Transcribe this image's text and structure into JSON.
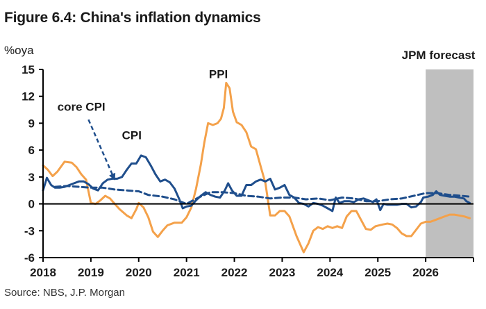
{
  "title": "Figure 6.4: China's inflation dynamics",
  "unit_label": "%oya",
  "source": "Source: NBS, J.P. Morgan",
  "chart_data": {
    "type": "line",
    "title": "Figure 6.4: China's inflation dynamics",
    "xlabel": "",
    "ylabel": "%oya",
    "xlim": [
      2018,
      2027
    ],
    "ylim": [
      -6,
      15
    ],
    "x_ticks": [
      "2018",
      "2019",
      "2020",
      "2021",
      "2022",
      "2023",
      "2024",
      "2025",
      "2026"
    ],
    "y_ticks": [
      "15",
      "12",
      "9",
      "6",
      "3",
      "0",
      "-3",
      "-6"
    ],
    "y_tick_values": [
      15,
      12,
      9,
      6,
      3,
      0,
      -3,
      -6
    ],
    "grid": false,
    "forecast_region": {
      "label": "JPM forecast",
      "start": 2026,
      "end": 2027,
      "color": "#bfbfbf"
    },
    "annotations": [
      {
        "text": "PPI",
        "series": "PPI"
      },
      {
        "text": "CPI",
        "series": "CPI"
      },
      {
        "text": "core CPI",
        "series": "core CPI",
        "arrow": true
      }
    ],
    "series": [
      {
        "name": "PPI",
        "color": "#f4a14a",
        "style": "solid",
        "points": [
          [
            2018.0,
            4.3
          ],
          [
            2018.1,
            3.8
          ],
          [
            2018.2,
            3.1
          ],
          [
            2018.3,
            3.6
          ],
          [
            2018.45,
            4.7
          ],
          [
            2018.6,
            4.6
          ],
          [
            2018.7,
            4.1
          ],
          [
            2018.8,
            3.3
          ],
          [
            2018.9,
            2.7
          ],
          [
            2019.0,
            0.1
          ],
          [
            2019.1,
            0.0
          ],
          [
            2019.2,
            0.4
          ],
          [
            2019.3,
            0.9
          ],
          [
            2019.4,
            0.6
          ],
          [
            2019.5,
            0.0
          ],
          [
            2019.6,
            -0.6
          ],
          [
            2019.75,
            -1.3
          ],
          [
            2019.85,
            -1.6
          ],
          [
            2019.95,
            -0.6
          ],
          [
            2020.0,
            0.1
          ],
          [
            2020.1,
            -0.4
          ],
          [
            2020.2,
            -1.5
          ],
          [
            2020.3,
            -3.1
          ],
          [
            2020.4,
            -3.7
          ],
          [
            2020.5,
            -3.0
          ],
          [
            2020.6,
            -2.4
          ],
          [
            2020.75,
            -2.1
          ],
          [
            2020.9,
            -2.1
          ],
          [
            2021.0,
            -1.5
          ],
          [
            2021.1,
            -0.4
          ],
          [
            2021.2,
            1.7
          ],
          [
            2021.3,
            4.4
          ],
          [
            2021.37,
            6.8
          ],
          [
            2021.45,
            9.0
          ],
          [
            2021.55,
            8.8
          ],
          [
            2021.65,
            9.0
          ],
          [
            2021.72,
            9.5
          ],
          [
            2021.78,
            10.7
          ],
          [
            2021.83,
            13.5
          ],
          [
            2021.9,
            12.9
          ],
          [
            2021.97,
            10.3
          ],
          [
            2022.05,
            9.1
          ],
          [
            2022.15,
            8.8
          ],
          [
            2022.25,
            8.0
          ],
          [
            2022.35,
            6.4
          ],
          [
            2022.45,
            6.1
          ],
          [
            2022.55,
            4.2
          ],
          [
            2022.65,
            2.3
          ],
          [
            2022.75,
            -1.3
          ],
          [
            2022.85,
            -1.3
          ],
          [
            2022.95,
            -0.8
          ],
          [
            2023.05,
            -0.8
          ],
          [
            2023.15,
            -1.4
          ],
          [
            2023.3,
            -3.6
          ],
          [
            2023.45,
            -5.4
          ],
          [
            2023.55,
            -4.4
          ],
          [
            2023.65,
            -3.0
          ],
          [
            2023.75,
            -2.6
          ],
          [
            2023.85,
            -2.8
          ],
          [
            2023.95,
            -2.5
          ],
          [
            2024.05,
            -2.7
          ],
          [
            2024.15,
            -2.5
          ],
          [
            2024.25,
            -2.7
          ],
          [
            2024.35,
            -1.4
          ],
          [
            2024.45,
            -0.8
          ],
          [
            2024.55,
            -0.8
          ],
          [
            2024.65,
            -1.8
          ],
          [
            2024.75,
            -2.8
          ],
          [
            2024.85,
            -2.9
          ],
          [
            2024.95,
            -2.5
          ],
          [
            2025.1,
            -2.3
          ],
          [
            2025.2,
            -2.2
          ],
          [
            2025.3,
            -2.3
          ],
          [
            2025.4,
            -2.7
          ],
          [
            2025.5,
            -3.3
          ],
          [
            2025.6,
            -3.6
          ],
          [
            2025.7,
            -3.6
          ],
          [
            2025.8,
            -2.9
          ],
          [
            2025.9,
            -2.2
          ],
          [
            2026.0,
            -2.0
          ],
          [
            2026.1,
            -2.0
          ],
          [
            2026.2,
            -1.8
          ],
          [
            2026.35,
            -1.5
          ],
          [
            2026.5,
            -1.2
          ],
          [
            2026.6,
            -1.2
          ],
          [
            2026.7,
            -1.3
          ],
          [
            2026.8,
            -1.4
          ],
          [
            2026.92,
            -1.6
          ]
        ]
      },
      {
        "name": "CPI",
        "color": "#1f4e8c",
        "style": "solid",
        "points": [
          [
            2018.0,
            1.5
          ],
          [
            2018.08,
            2.9
          ],
          [
            2018.17,
            2.1
          ],
          [
            2018.25,
            1.8
          ],
          [
            2018.35,
            1.8
          ],
          [
            2018.45,
            1.9
          ],
          [
            2018.55,
            2.1
          ],
          [
            2018.65,
            2.3
          ],
          [
            2018.75,
            2.5
          ],
          [
            2018.85,
            2.5
          ],
          [
            2018.95,
            2.2
          ],
          [
            2019.05,
            1.7
          ],
          [
            2019.15,
            1.5
          ],
          [
            2019.25,
            2.3
          ],
          [
            2019.35,
            2.7
          ],
          [
            2019.45,
            2.8
          ],
          [
            2019.55,
            2.8
          ],
          [
            2019.65,
            3.0
          ],
          [
            2019.75,
            3.8
          ],
          [
            2019.85,
            4.5
          ],
          [
            2019.95,
            4.5
          ],
          [
            2020.05,
            5.4
          ],
          [
            2020.15,
            5.2
          ],
          [
            2020.25,
            4.3
          ],
          [
            2020.35,
            3.3
          ],
          [
            2020.45,
            2.5
          ],
          [
            2020.55,
            2.7
          ],
          [
            2020.65,
            2.4
          ],
          [
            2020.75,
            1.7
          ],
          [
            2020.85,
            0.5
          ],
          [
            2020.92,
            -0.5
          ],
          [
            2021.0,
            -0.3
          ],
          [
            2021.1,
            -0.2
          ],
          [
            2021.2,
            0.4
          ],
          [
            2021.3,
            0.9
          ],
          [
            2021.4,
            1.3
          ],
          [
            2021.5,
            1.0
          ],
          [
            2021.6,
            0.8
          ],
          [
            2021.7,
            0.7
          ],
          [
            2021.8,
            1.5
          ],
          [
            2021.87,
            2.3
          ],
          [
            2021.95,
            1.5
          ],
          [
            2022.05,
            0.9
          ],
          [
            2022.15,
            0.9
          ],
          [
            2022.25,
            2.1
          ],
          [
            2022.35,
            2.1
          ],
          [
            2022.45,
            2.5
          ],
          [
            2022.55,
            2.7
          ],
          [
            2022.65,
            2.5
          ],
          [
            2022.75,
            2.8
          ],
          [
            2022.85,
            1.6
          ],
          [
            2022.95,
            1.8
          ],
          [
            2023.05,
            2.1
          ],
          [
            2023.15,
            1.0
          ],
          [
            2023.25,
            0.7
          ],
          [
            2023.35,
            0.1
          ],
          [
            2023.45,
            0.0
          ],
          [
            2023.55,
            -0.3
          ],
          [
            2023.65,
            0.1
          ],
          [
            2023.75,
            0.0
          ],
          [
            2023.85,
            -0.2
          ],
          [
            2023.95,
            -0.5
          ],
          [
            2024.05,
            -0.8
          ],
          [
            2024.12,
            0.7
          ],
          [
            2024.2,
            0.1
          ],
          [
            2024.3,
            0.3
          ],
          [
            2024.4,
            0.3
          ],
          [
            2024.5,
            0.2
          ],
          [
            2024.6,
            0.5
          ],
          [
            2024.7,
            0.6
          ],
          [
            2024.8,
            0.4
          ],
          [
            2024.9,
            0.2
          ],
          [
            2024.97,
            0.5
          ],
          [
            2025.05,
            -0.7
          ],
          [
            2025.12,
            0.0
          ],
          [
            2025.2,
            -0.1
          ],
          [
            2025.3,
            -0.1
          ],
          [
            2025.4,
            -0.1
          ],
          [
            2025.5,
            0.0
          ],
          [
            2025.6,
            0.0
          ],
          [
            2025.7,
            -0.4
          ],
          [
            2025.8,
            -0.3
          ],
          [
            2025.9,
            0.2
          ],
          [
            2025.95,
            0.7
          ],
          [
            2026.05,
            0.8
          ],
          [
            2026.15,
            1.0
          ],
          [
            2026.22,
            1.4
          ],
          [
            2026.3,
            1.0
          ],
          [
            2026.4,
            0.9
          ],
          [
            2026.5,
            0.8
          ],
          [
            2026.6,
            0.8
          ],
          [
            2026.7,
            0.7
          ],
          [
            2026.8,
            0.6
          ],
          [
            2026.85,
            0.3
          ],
          [
            2026.92,
            0.1
          ]
        ]
      },
      {
        "name": "core CPI",
        "color": "#1f4e8c",
        "style": "dashed",
        "points": [
          [
            2018.25,
            1.9
          ],
          [
            2018.5,
            2.0
          ],
          [
            2018.75,
            1.9
          ],
          [
            2019.0,
            1.8
          ],
          [
            2019.25,
            1.8
          ],
          [
            2019.5,
            1.6
          ],
          [
            2019.75,
            1.5
          ],
          [
            2020.0,
            1.4
          ],
          [
            2020.2,
            1.0
          ],
          [
            2020.5,
            0.8
          ],
          [
            2020.75,
            0.5
          ],
          [
            2021.0,
            0.0
          ],
          [
            2021.25,
            0.7
          ],
          [
            2021.5,
            1.3
          ],
          [
            2021.75,
            1.3
          ],
          [
            2022.0,
            1.2
          ],
          [
            2022.25,
            0.9
          ],
          [
            2022.5,
            0.8
          ],
          [
            2022.75,
            0.6
          ],
          [
            2023.0,
            0.7
          ],
          [
            2023.25,
            0.7
          ],
          [
            2023.5,
            0.5
          ],
          [
            2023.75,
            0.6
          ],
          [
            2024.0,
            0.4
          ],
          [
            2024.25,
            0.7
          ],
          [
            2024.5,
            0.6
          ],
          [
            2024.75,
            0.3
          ],
          [
            2025.0,
            0.3
          ],
          [
            2025.25,
            0.5
          ],
          [
            2025.5,
            0.6
          ],
          [
            2025.75,
            0.9
          ],
          [
            2026.0,
            1.2
          ],
          [
            2026.25,
            1.2
          ],
          [
            2026.5,
            1.0
          ],
          [
            2026.75,
            0.9
          ],
          [
            2026.92,
            0.8
          ]
        ]
      }
    ]
  }
}
